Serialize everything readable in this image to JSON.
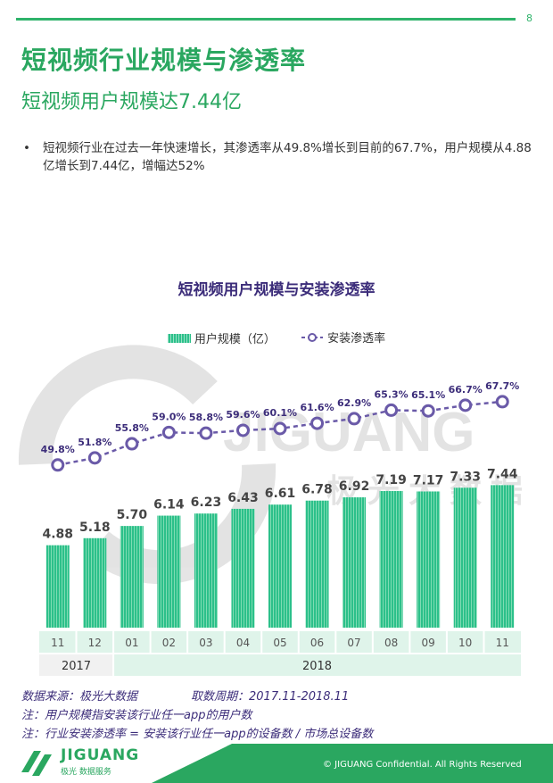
{
  "page": {
    "number": "8"
  },
  "header": {
    "title": "短视频行业规模与渗透率",
    "subtitle": "短视频用户规模达7.44亿"
  },
  "bullet": {
    "marker": "•",
    "text": "短视频行业在过去一年快速增长，其渗透率从49.8%增长到目前的67.7%，用户规模从4.88亿增长到7.44亿，增幅达52%"
  },
  "chart_data": {
    "type": "bar",
    "title": "短视频用户规模与安装渗透率",
    "categories": [
      "11",
      "12",
      "01",
      "02",
      "03",
      "04",
      "05",
      "06",
      "07",
      "08",
      "09",
      "10",
      "11"
    ],
    "year_groups": [
      {
        "label": "2017",
        "count": 2
      },
      {
        "label": "2018",
        "count": 11
      }
    ],
    "series": [
      {
        "name": "用户规模（亿）",
        "type": "bar",
        "values": [
          4.88,
          5.18,
          5.7,
          6.14,
          6.23,
          6.43,
          6.61,
          6.78,
          6.92,
          7.19,
          7.17,
          7.33,
          7.44
        ],
        "labels": [
          "4.88",
          "5.18",
          "5.70",
          "6.14",
          "6.23",
          "6.43",
          "6.61",
          "6.78",
          "6.92",
          "7.19",
          "7.17",
          "7.33",
          "7.44"
        ]
      },
      {
        "name": "安装渗透率",
        "type": "line",
        "values": [
          49.8,
          51.8,
          55.8,
          59.0,
          58.8,
          59.6,
          60.1,
          61.6,
          62.9,
          65.3,
          65.1,
          66.7,
          67.7
        ],
        "labels": [
          "49.8%",
          "51.8%",
          "55.8%",
          "59.0%",
          "58.8%",
          "59.6%",
          "60.1%",
          "61.6%",
          "62.9%",
          "65.3%",
          "65.1%",
          "66.7%",
          "67.7%"
        ]
      }
    ],
    "colors": {
      "bar": "#2cc08a",
      "line": "#6a5aa8",
      "axis_band": "#dff4ea"
    },
    "grid": false,
    "legend_position": "top-center"
  },
  "watermark": {
    "brand": "JIGUANG",
    "cn": "极光大数据"
  },
  "notes": {
    "source": "数据来源：极光大数据",
    "period": "取数周期：2017.11-2018.11",
    "note1": "注：用户规模指安装该行业任一app的用户数",
    "note2": "注：行业安装渗透率 = 安装该行业任一app的设备数 / 市场总设备数"
  },
  "footer": {
    "logo_text": "JIGUANG",
    "logo_sub": "极光 数据服务",
    "copyright": "© JIGUANG Confidential. All Rights Reserved"
  }
}
